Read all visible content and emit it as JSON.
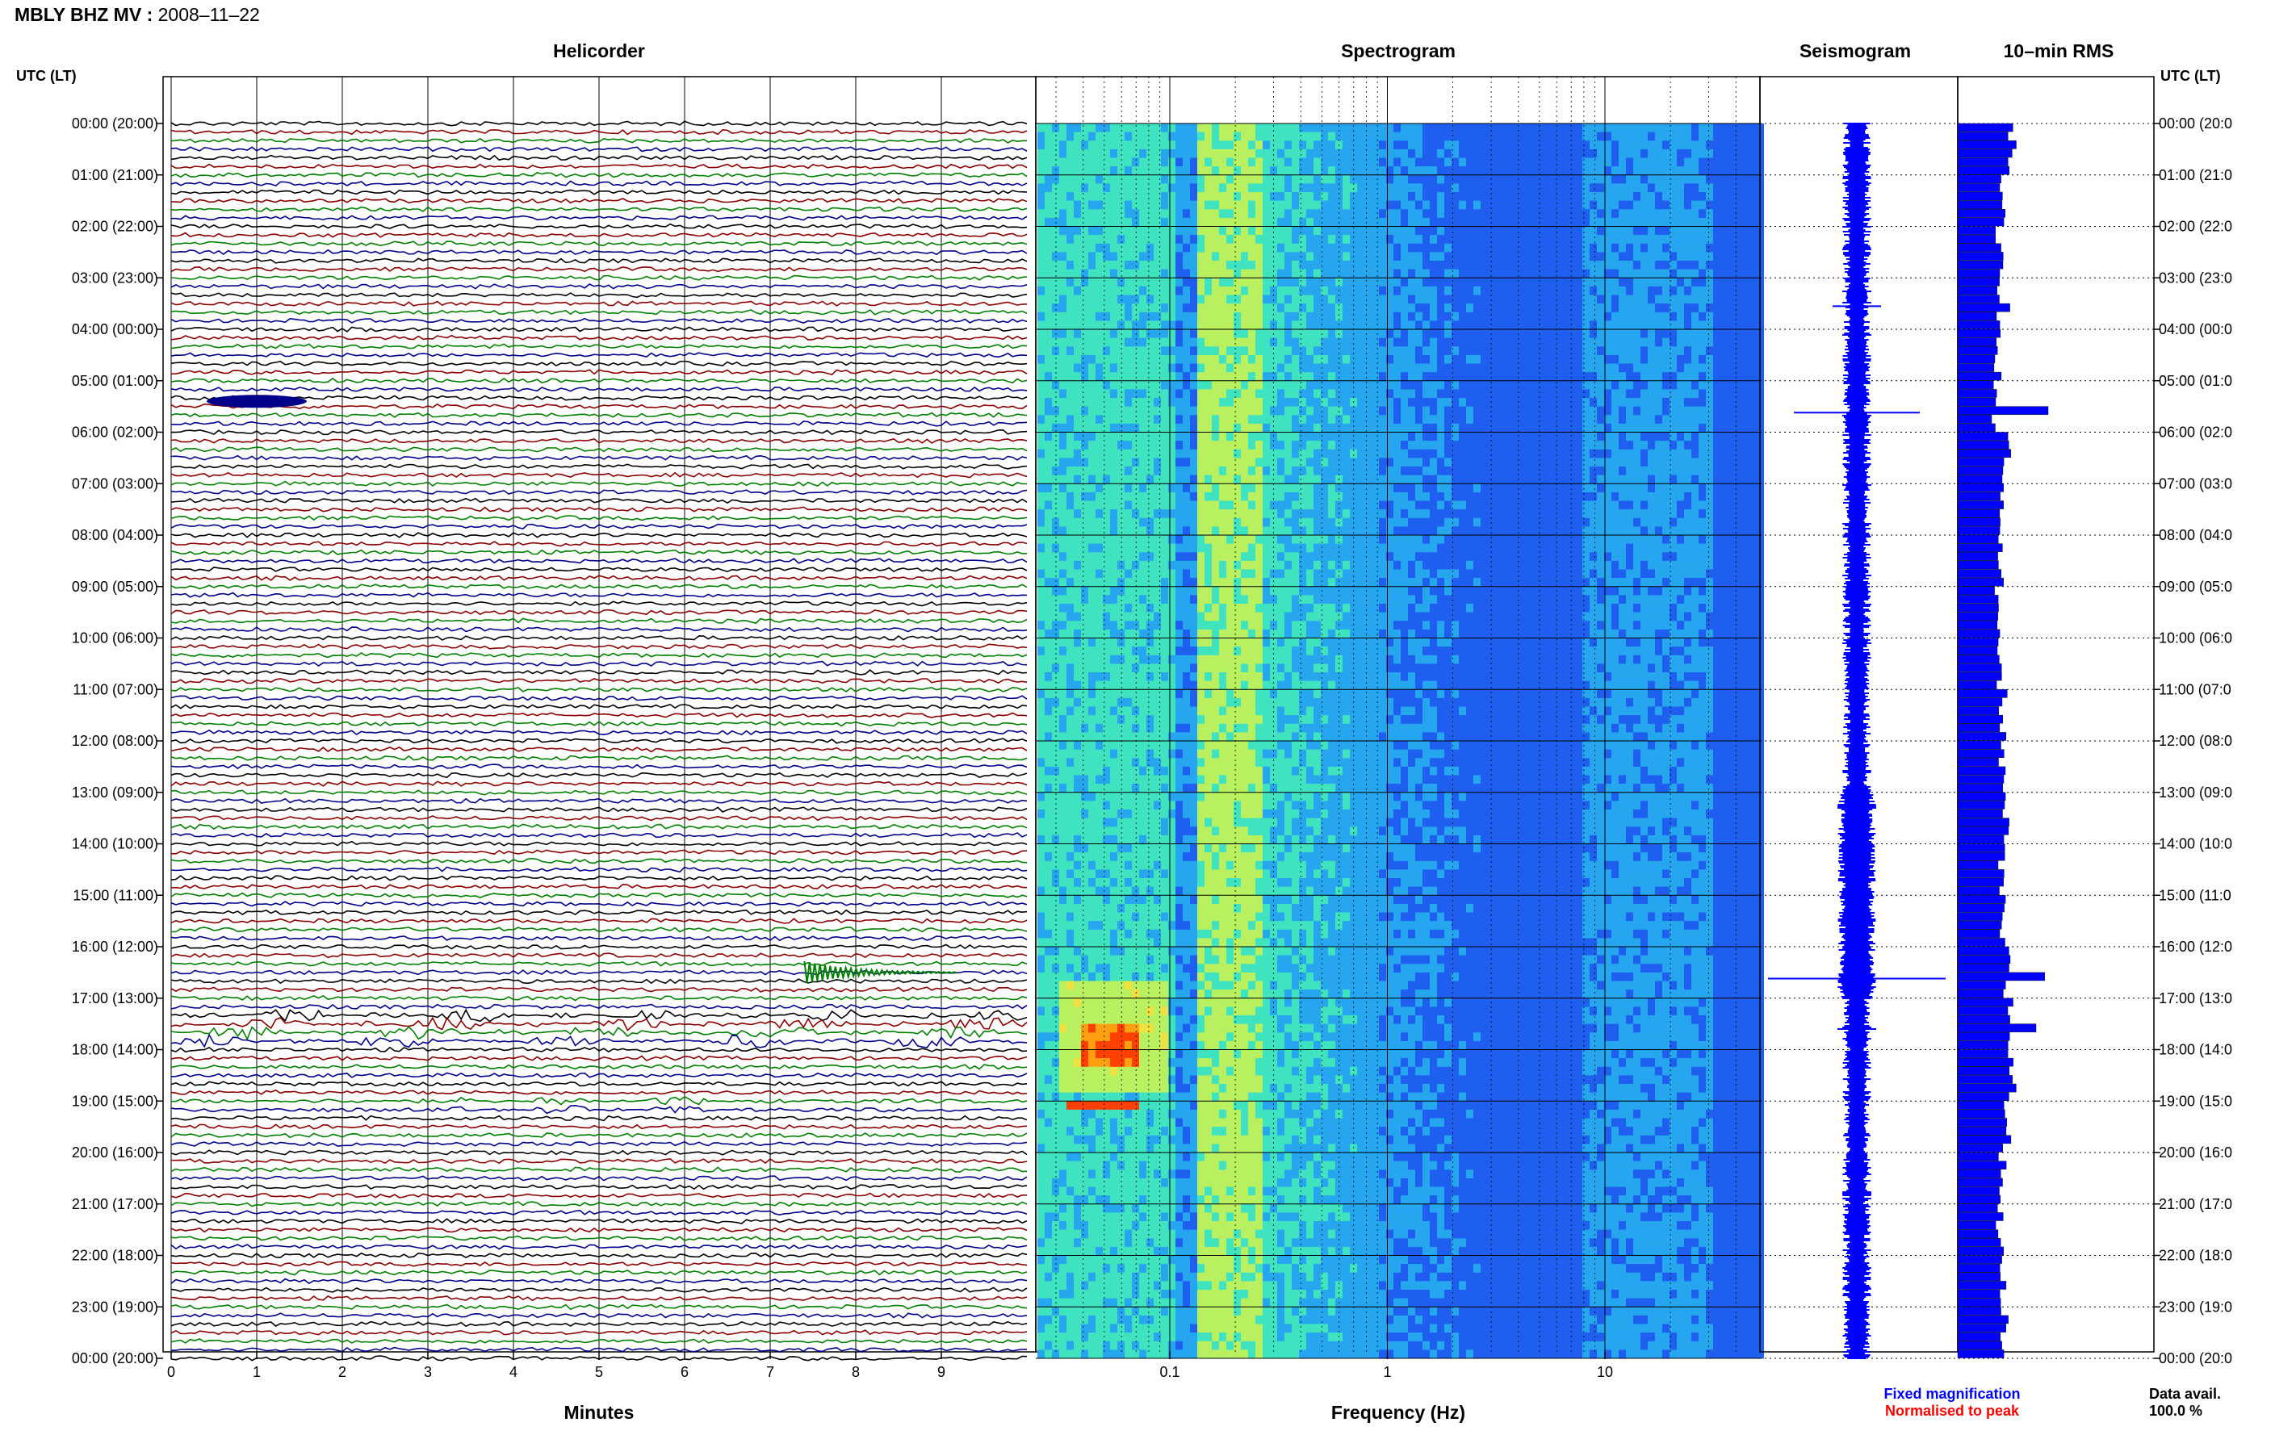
{
  "header": {
    "station": "MBLY BHZ MV",
    "date": "2008–11–22"
  },
  "panels": {
    "helicorder": "Helicorder",
    "spectrogram": "Spectrogram",
    "seismogram": "Seismogram",
    "rms": "10–min RMS"
  },
  "axes": {
    "time_label": "UTC (LT)",
    "minutes_label": "Minutes",
    "frequency_label": "Frequency (Hz)"
  },
  "legend": {
    "fixed": "Fixed magnification",
    "fixed_color": "#0000ff",
    "normalised": "Normalised to peak",
    "normalised_color": "#ff0000",
    "data_avail": "Data avail.",
    "data_pct": "100.0 %"
  },
  "chart_data": {
    "type": "helicorder",
    "hours_left": [
      "00:00 (20:00)",
      "01:00 (21:00)",
      "02:00 (22:00)",
      "03:00 (23:00)",
      "04:00 (00:00)",
      "05:00 (01:00)",
      "06:00 (02:00)",
      "07:00 (03:00)",
      "08:00 (04:00)",
      "09:00 (05:00)",
      "10:00 (06:00)",
      "11:00 (07:00)",
      "12:00 (08:00)",
      "13:00 (09:00)",
      "14:00 (10:00)",
      "15:00 (11:00)",
      "16:00 (12:00)",
      "17:00 (13:00)",
      "18:00 (14:00)",
      "19:00 (15:00)",
      "20:00 (16:00)",
      "21:00 (17:00)",
      "22:00 (18:00)",
      "23:00 (19:00)",
      "00:00 (20:00)"
    ],
    "hours_right": [
      "00:00 (20:0",
      "01:00 (21:0",
      "02:00 (22:0",
      "03:00 (23:0",
      "04:00 (00:0",
      "05:00 (01:0",
      "06:00 (02:0",
      "07:00 (03:0",
      "08:00 (04:0",
      "09:00 (05:0",
      "10:00 (06:0",
      "11:00 (07:0",
      "12:00 (08:0",
      "13:00 (09:0",
      "14:00 (10:0",
      "15:00 (11:0",
      "16:00 (12:0",
      "17:00 (13:0",
      "18:00 (14:0",
      "19:00 (15:0",
      "20:00 (16:0",
      "21:00 (17:0",
      "22:00 (18:0",
      "23:00 (19:0",
      "00:00 (20:0"
    ],
    "minute_ticks": [
      "0",
      "1",
      "2",
      "3",
      "4",
      "5",
      "6",
      "7",
      "8",
      "9"
    ],
    "frequency_ticks": [
      "0.1",
      "1",
      "10"
    ],
    "trace_colors": [
      "#000000",
      "#8b0000",
      "#008000",
      "#00008b"
    ],
    "spectrogram_colors": [
      "#0a1ecc",
      "#1f5ff0",
      "#27a6f0",
      "#3fe3c0",
      "#b8f060",
      "#f0e040",
      "#ffa010",
      "#ff4000"
    ],
    "rms_bar_color": "#0000ff",
    "rms_units_note": "",
    "rms_per_hour": [
      3.2,
      2.6,
      2.4,
      2.3,
      2.3,
      2.1,
      2.8,
      2.6,
      2.4,
      2.2,
      2.4,
      2.6,
      2.5,
      2.7,
      2.5,
      2.5,
      2.8,
      3.0,
      3.1,
      2.8,
      2.6,
      2.4,
      2.6,
      2.7
    ],
    "events": [
      {
        "hour": 5.4,
        "minute": 1.0,
        "panel": "helicorder",
        "color": "#00008b"
      },
      {
        "hour": 16.5,
        "minute": 7.4,
        "panel": "helicorder",
        "color": "#008000"
      },
      {
        "hour": 17.5,
        "minute": 4.0,
        "panel": "helicorder",
        "color": "#8b0000"
      }
    ]
  }
}
